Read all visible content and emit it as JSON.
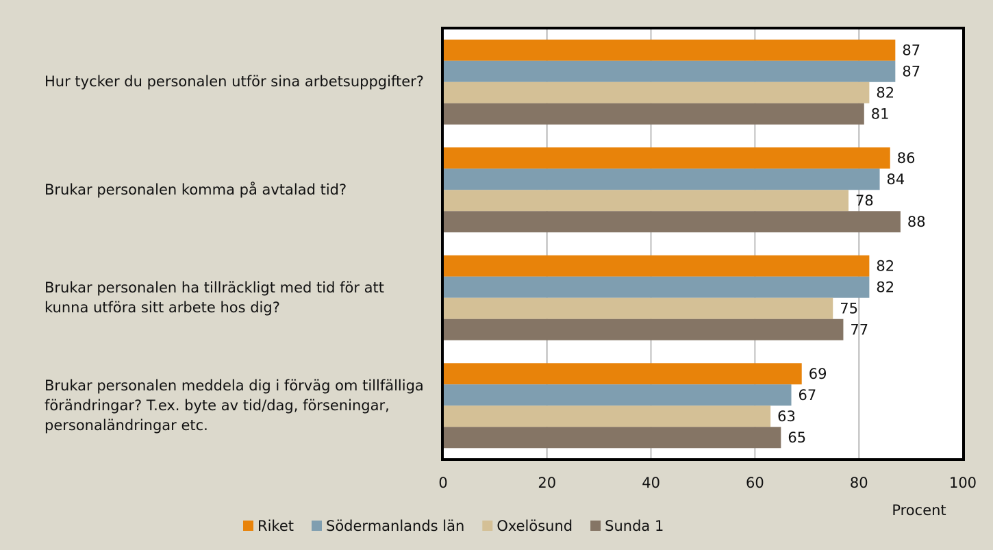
{
  "chart_data": {
    "type": "bar",
    "orientation": "horizontal",
    "categories": [
      "Hur tycker du personalen utför sina arbetsuppgifter?",
      "Brukar personalen komma på avtalad tid?",
      "Brukar personalen ha tillräckligt med tid för att kunna utföra sitt arbete hos dig?",
      "Brukar personalen meddela dig i förväg om tillfälliga förändringar? T.ex. byte av tid/dag, förseningar, personaländringar etc."
    ],
    "series": [
      {
        "name": "Riket",
        "color": "#e8830a",
        "values": [
          87,
          86,
          82,
          69
        ]
      },
      {
        "name": "Södermanlands län",
        "color": "#7f9eb0",
        "values": [
          87,
          84,
          82,
          67
        ]
      },
      {
        "name": "Oxelösund",
        "color": "#d4c096",
        "values": [
          82,
          78,
          75,
          63
        ]
      },
      {
        "name": "Sunda 1",
        "color": "#857565",
        "values": [
          81,
          88,
          77,
          65
        ]
      }
    ],
    "xlabel": "Procent",
    "xlim": [
      0,
      100
    ],
    "xticks": [
      0,
      20,
      40,
      60,
      80,
      100
    ],
    "grid": true,
    "legend": "bottom"
  }
}
